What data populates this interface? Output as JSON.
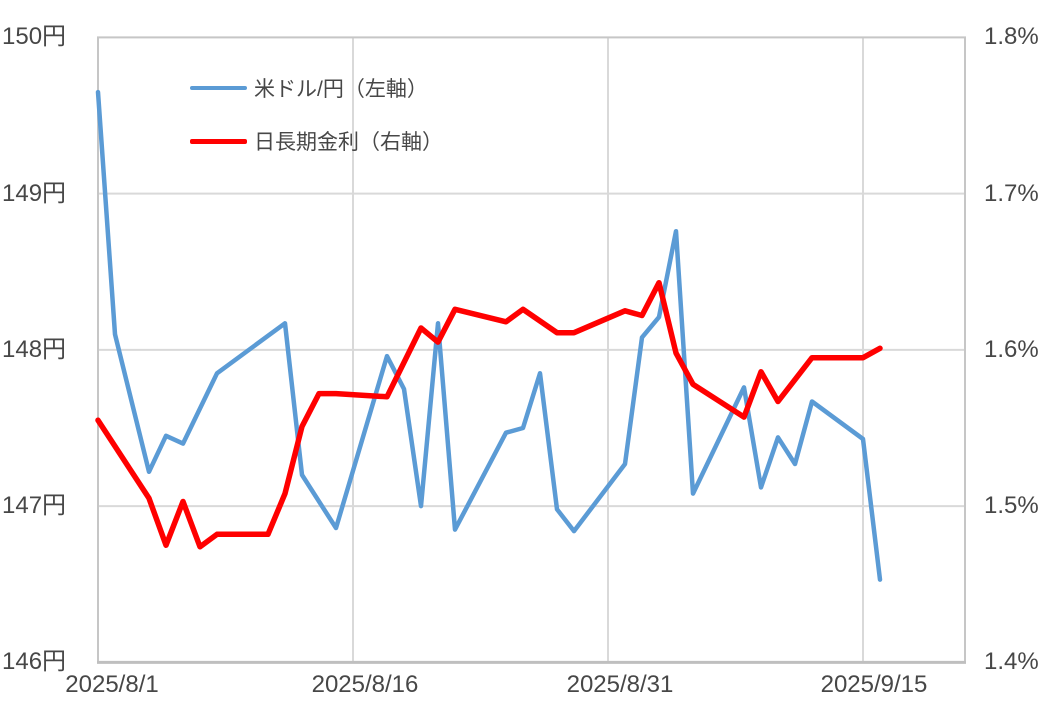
{
  "chart_data": {
    "type": "line",
    "title": "",
    "legend_position": "top-left-inside",
    "grid": true,
    "grid_color": "#D9D9D9",
    "border_color": "#C6C6C6",
    "axis_line_color": "#BFBFBF",
    "text_color": "#474747",
    "background": "#FFFFFF",
    "legend": [
      {
        "label": "米ドル/円（左軸）",
        "color": "#5B9BD5",
        "axis": "left"
      },
      {
        "label": "日長期金利（右軸）",
        "color": "#FF0000",
        "axis": "right"
      }
    ],
    "x_axis": {
      "type": "date",
      "start_date": "2025/8/1",
      "days_span": 51,
      "tick_labels": [
        "2025/8/1",
        "2025/8/16",
        "2025/8/31",
        "2025/9/15"
      ],
      "tick_day_offsets": [
        0,
        15,
        30,
        45
      ]
    },
    "y_left": {
      "unit": "円",
      "min": 146,
      "max": 150,
      "tick_values": [
        150,
        149,
        148,
        147,
        146
      ],
      "tick_labels": [
        "150円",
        "149円",
        "148円",
        "147円",
        "146円"
      ]
    },
    "y_right": {
      "unit": "%",
      "min": 1.4,
      "max": 1.8,
      "tick_values": [
        1.8,
        1.7,
        1.6,
        1.5,
        1.4
      ],
      "tick_labels": [
        "1.8%",
        "1.7%",
        "1.6%",
        "1.5%",
        "1.4%"
      ]
    },
    "series": [
      {
        "name": "米ドル/円（左軸）",
        "axis": "left",
        "color": "#5B9BD5",
        "stroke_width": 4.5,
        "points": [
          {
            "date": "2025/8/1",
            "value": 149.65
          },
          {
            "date": "2025/8/2",
            "value": 148.1
          },
          {
            "date": "2025/8/4",
            "value": 147.22
          },
          {
            "date": "2025/8/5",
            "value": 147.45
          },
          {
            "date": "2025/8/6",
            "value": 147.4
          },
          {
            "date": "2025/8/8",
            "value": 147.85
          },
          {
            "date": "2025/8/12",
            "value": 148.17
          },
          {
            "date": "2025/8/13",
            "value": 147.2
          },
          {
            "date": "2025/8/15",
            "value": 146.86
          },
          {
            "date": "2025/8/18",
            "value": 147.96
          },
          {
            "date": "2025/8/19",
            "value": 147.75
          },
          {
            "date": "2025/8/20",
            "value": 147.0
          },
          {
            "date": "2025/8/21",
            "value": 148.17
          },
          {
            "date": "2025/8/22",
            "value": 146.85
          },
          {
            "date": "2025/8/25",
            "value": 147.47
          },
          {
            "date": "2025/8/26",
            "value": 147.5
          },
          {
            "date": "2025/8/27",
            "value": 147.85
          },
          {
            "date": "2025/8/28",
            "value": 146.98
          },
          {
            "date": "2025/8/29",
            "value": 146.84
          },
          {
            "date": "2025/9/1",
            "value": 147.27
          },
          {
            "date": "2025/9/2",
            "value": 148.08
          },
          {
            "date": "2025/9/3",
            "value": 148.21
          },
          {
            "date": "2025/9/4",
            "value": 148.76
          },
          {
            "date": "2025/9/5",
            "value": 147.08
          },
          {
            "date": "2025/9/8",
            "value": 147.76
          },
          {
            "date": "2025/9/9",
            "value": 147.12
          },
          {
            "date": "2025/9/10",
            "value": 147.44
          },
          {
            "date": "2025/9/11",
            "value": 147.27
          },
          {
            "date": "2025/9/12",
            "value": 147.67
          },
          {
            "date": "2025/9/15",
            "value": 147.43
          },
          {
            "date": "2025/9/16",
            "value": 146.53
          }
        ]
      },
      {
        "name": "日長期金利（右軸）",
        "axis": "right",
        "color": "#FF0000",
        "stroke_width": 5.5,
        "points": [
          {
            "date": "2025/8/1",
            "value": 1.555
          },
          {
            "date": "2025/8/4",
            "value": 1.505
          },
          {
            "date": "2025/8/5",
            "value": 1.475
          },
          {
            "date": "2025/8/6",
            "value": 1.503
          },
          {
            "date": "2025/8/7",
            "value": 1.474
          },
          {
            "date": "2025/8/8",
            "value": 1.482
          },
          {
            "date": "2025/8/11",
            "value": 1.482
          },
          {
            "date": "2025/8/12",
            "value": 1.508
          },
          {
            "date": "2025/8/13",
            "value": 1.551
          },
          {
            "date": "2025/8/14",
            "value": 1.572
          },
          {
            "date": "2025/8/15",
            "value": 1.572
          },
          {
            "date": "2025/8/18",
            "value": 1.57
          },
          {
            "date": "2025/8/20",
            "value": 1.614
          },
          {
            "date": "2025/8/21",
            "value": 1.605
          },
          {
            "date": "2025/8/22",
            "value": 1.626
          },
          {
            "date": "2025/8/25",
            "value": 1.618
          },
          {
            "date": "2025/8/26",
            "value": 1.626
          },
          {
            "date": "2025/8/28",
            "value": 1.611
          },
          {
            "date": "2025/8/29",
            "value": 1.611
          },
          {
            "date": "2025/9/1",
            "value": 1.625
          },
          {
            "date": "2025/9/2",
            "value": 1.622
          },
          {
            "date": "2025/9/3",
            "value": 1.643
          },
          {
            "date": "2025/9/4",
            "value": 1.598
          },
          {
            "date": "2025/9/5",
            "value": 1.578
          },
          {
            "date": "2025/9/8",
            "value": 1.557
          },
          {
            "date": "2025/9/9",
            "value": 1.586
          },
          {
            "date": "2025/9/10",
            "value": 1.567
          },
          {
            "date": "2025/9/12",
            "value": 1.595
          },
          {
            "date": "2025/9/15",
            "value": 1.595
          },
          {
            "date": "2025/9/16",
            "value": 1.601
          }
        ]
      }
    ]
  }
}
